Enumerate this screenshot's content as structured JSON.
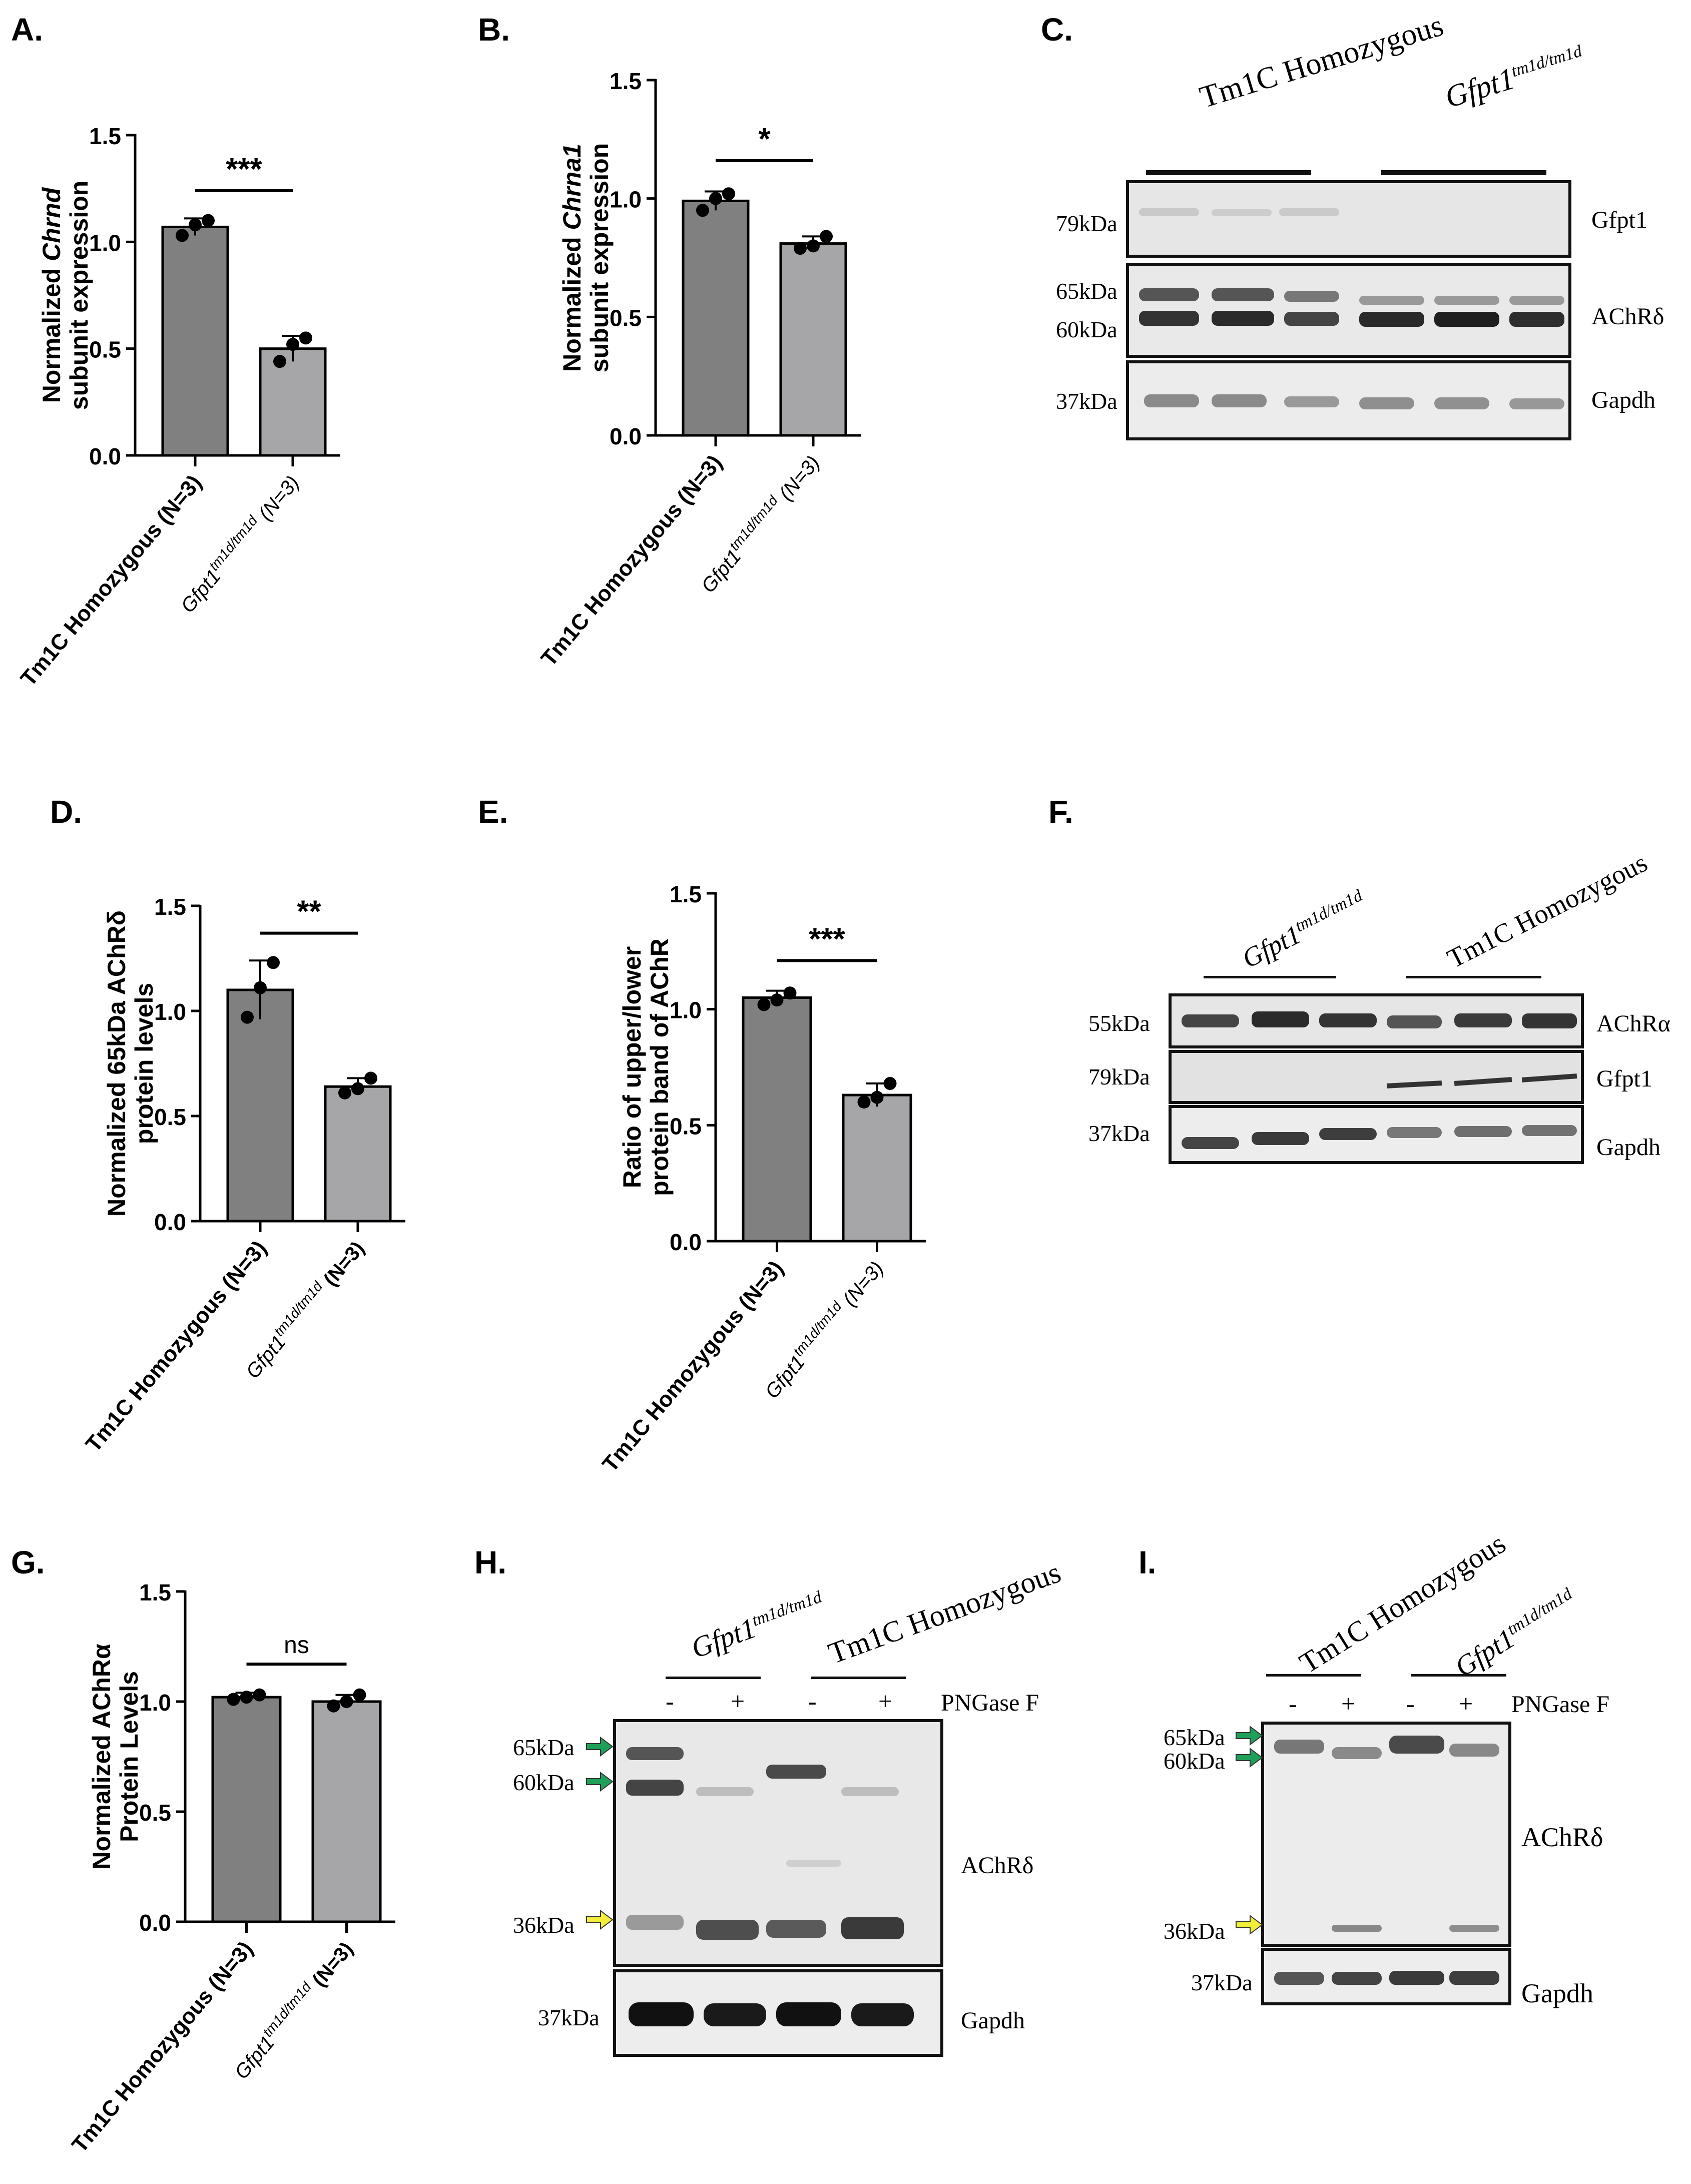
{
  "panels": {
    "A": {
      "letter": "A."
    },
    "B": {
      "letter": "B."
    },
    "C": {
      "letter": "C."
    },
    "D": {
      "letter": "D."
    },
    "E": {
      "letter": "E."
    },
    "F": {
      "letter": "F."
    },
    "G": {
      "letter": "G."
    },
    "H": {
      "letter": "H."
    },
    "I": {
      "letter": "I."
    }
  },
  "groups": {
    "tm1c": "Tm1C Homozygous",
    "gfpt1_base": "Gfpt1",
    "gfpt1_sup": "tm1d/tm1d",
    "n": "(N=3)"
  },
  "chart_data": [
    {
      "id": "A",
      "type": "bar",
      "categories": [
        "Tm1C Homozygous (N=3)",
        "Gfpt1 tm1d/tm1d (N=3)"
      ],
      "values": [
        1.07,
        0.5
      ],
      "errors": [
        0.04,
        0.06
      ],
      "points": [
        [
          1.03,
          1.08,
          1.1
        ],
        [
          0.44,
          0.52,
          0.55
        ]
      ],
      "ylabel_line1": "Normalized Chrnd",
      "ylabel_line2": "subunit expression",
      "ylim": [
        0,
        1.5
      ],
      "yticks": [
        "0.0",
        "0.5",
        "1.0",
        "1.5"
      ],
      "significance": "***"
    },
    {
      "id": "B",
      "type": "bar",
      "categories": [
        "Tm1C Homozygous (N=3)",
        "Gfpt1 tm1d/tm1d (N=3)"
      ],
      "values": [
        0.99,
        0.81
      ],
      "errors": [
        0.04,
        0.03
      ],
      "points": [
        [
          0.95,
          1.0,
          1.02
        ],
        [
          0.79,
          0.8,
          0.84
        ]
      ],
      "ylabel_line1": "Normalized Chrna1",
      "ylabel_line2": "subunit expression",
      "ylim": [
        0,
        1.5
      ],
      "yticks": [
        "0.0",
        "0.5",
        "1.0",
        "1.5"
      ],
      "significance": "*"
    },
    {
      "id": "D",
      "type": "bar",
      "categories": [
        "Tm1C Homozygous (N=3)",
        "Gfpt1 tm1d/tm1d (N=3)"
      ],
      "values": [
        1.1,
        0.64
      ],
      "errors": [
        0.14,
        0.04
      ],
      "points": [
        [
          0.97,
          1.11,
          1.23
        ],
        [
          0.61,
          0.63,
          0.68
        ]
      ],
      "ylabel_line1": "Normalized 65kDa AChRδ",
      "ylabel_line2": "protein levels",
      "ylim": [
        0,
        1.5
      ],
      "yticks": [
        "0.0",
        "0.5",
        "1.0",
        "1.5"
      ],
      "significance": "**"
    },
    {
      "id": "E",
      "type": "bar",
      "categories": [
        "Tm1C Homozygous (N=3)",
        "Gfpt1 tm1d/tm1d (N=3)"
      ],
      "values": [
        1.05,
        0.63
      ],
      "errors": [
        0.03,
        0.05
      ],
      "points": [
        [
          1.02,
          1.04,
          1.07
        ],
        [
          0.6,
          0.62,
          0.68
        ]
      ],
      "ylabel_line1": "Ratio of upper/lower",
      "ylabel_line2": "protein band of AChR",
      "ylim": [
        0,
        1.5
      ],
      "yticks": [
        "0.0",
        "0.5",
        "1.0",
        "1.5"
      ],
      "significance": "***"
    },
    {
      "id": "G",
      "type": "bar",
      "categories": [
        "Tm1C Homozygous (N=3)",
        "Gfpt1 tm1d/tm1d (N=3)"
      ],
      "values": [
        1.02,
        1.0
      ],
      "errors": [
        0.02,
        0.03
      ],
      "points": [
        [
          1.01,
          1.02,
          1.03
        ],
        [
          0.98,
          1.0,
          1.03
        ]
      ],
      "ylabel_line1": "Normalized AChRα",
      "ylabel_line2": "Protein Levels",
      "ylim": [
        0,
        1.5
      ],
      "yticks": [
        "0.0",
        "0.5",
        "1.0",
        "1.5"
      ],
      "significance": "ns"
    }
  ],
  "blots": {
    "C": {
      "group_left": "Tm1C Homozygous",
      "group_right_base": "Gfpt1",
      "group_right_sup": "tm1d/tm1d",
      "rows": [
        {
          "mw": "79kDa",
          "name": "Gfpt1"
        },
        {
          "mw_top": "65kDa",
          "mw_bottom": "60kDa",
          "name": "AChRδ"
        },
        {
          "mw": "37kDa",
          "name": "Gapdh"
        }
      ]
    },
    "F": {
      "group_left_base": "Gfpt1",
      "group_left_sup": "tm1d/tm1d",
      "group_right": "Tm1C Homozygous",
      "rows": [
        {
          "mw": "55kDa",
          "name": "AChRα"
        },
        {
          "mw": "79kDa",
          "name": "Gfpt1"
        },
        {
          "mw": "37kDa",
          "name": "Gapdh"
        }
      ]
    },
    "H": {
      "group_left_base": "Gfpt1",
      "group_left_sup": "tm1d/tm1d",
      "group_right": "Tm1C Homozygous",
      "signs": [
        "-",
        "+",
        "-",
        "+"
      ],
      "enzyme": "PNGase F",
      "mw": [
        "65kDa",
        "60kDa",
        "36kDa",
        "37kDa"
      ],
      "names": [
        "AChRδ",
        "Gapdh"
      ]
    },
    "I": {
      "group_left": "Tm1C Homozygous",
      "group_right_base": "Gfpt1",
      "group_right_sup": "tm1d/tm1d",
      "signs": [
        "-",
        "+",
        "-",
        "+"
      ],
      "enzyme": "PNGase F",
      "mw": [
        "65kDa",
        "60kDa",
        "36kDa",
        "37kDa"
      ],
      "names": [
        "AChRδ",
        "Gapdh"
      ]
    }
  },
  "colors": {
    "bar_dark": "#808080",
    "bar_light": "#a6a6a8",
    "arrow_green": "#1fa05a",
    "arrow_yellow": "#f2ee3a"
  }
}
